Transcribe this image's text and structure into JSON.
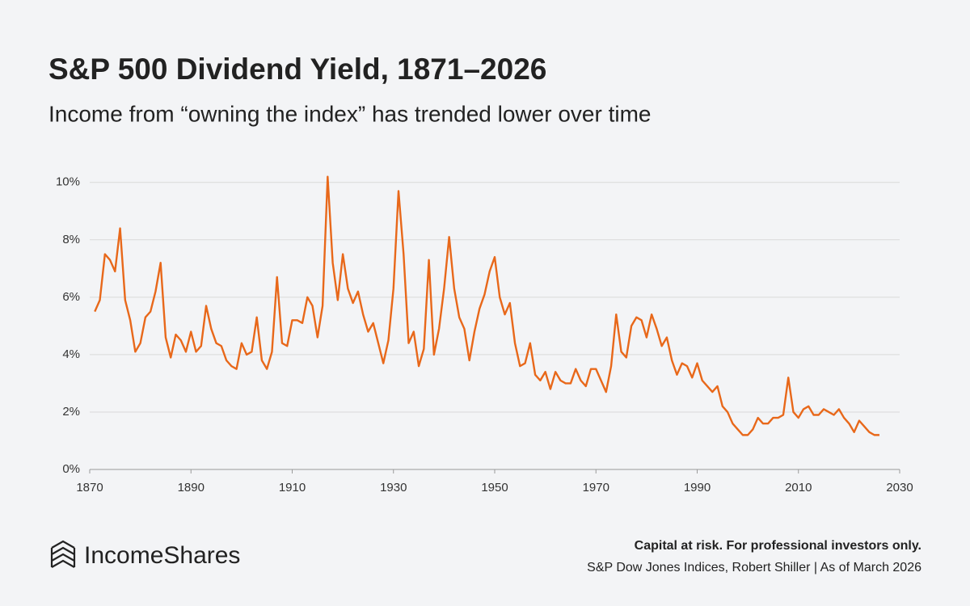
{
  "chart_data": {
    "type": "line",
    "title": "S&P 500 Dividend Yield, 1871–2026",
    "subtitle": "Income from “owning the index” has trended lower over time",
    "color": "#e8681a",
    "grid": true,
    "x": [
      1871,
      1872,
      1873,
      1874,
      1875,
      1876,
      1877,
      1878,
      1879,
      1880,
      1881,
      1882,
      1883,
      1884,
      1885,
      1886,
      1887,
      1888,
      1889,
      1890,
      1891,
      1892,
      1893,
      1894,
      1895,
      1896,
      1897,
      1898,
      1899,
      1900,
      1901,
      1902,
      1903,
      1904,
      1905,
      1906,
      1907,
      1908,
      1909,
      1910,
      1911,
      1912,
      1913,
      1914,
      1915,
      1916,
      1917,
      1918,
      1919,
      1920,
      1921,
      1922,
      1923,
      1924,
      1925,
      1926,
      1927,
      1928,
      1929,
      1930,
      1931,
      1932,
      1933,
      1934,
      1935,
      1936,
      1937,
      1938,
      1939,
      1940,
      1941,
      1942,
      1943,
      1944,
      1945,
      1946,
      1947,
      1948,
      1949,
      1950,
      1951,
      1952,
      1953,
      1954,
      1955,
      1956,
      1957,
      1958,
      1959,
      1960,
      1961,
      1962,
      1963,
      1964,
      1965,
      1966,
      1967,
      1968,
      1969,
      1970,
      1971,
      1972,
      1973,
      1974,
      1975,
      1976,
      1977,
      1978,
      1979,
      1980,
      1981,
      1982,
      1983,
      1984,
      1985,
      1986,
      1987,
      1988,
      1989,
      1990,
      1991,
      1992,
      1993,
      1994,
      1995,
      1996,
      1997,
      1998,
      1999,
      2000,
      2001,
      2002,
      2003,
      2004,
      2005,
      2006,
      2007,
      2008,
      2009,
      2010,
      2011,
      2012,
      2013,
      2014,
      2015,
      2016,
      2017,
      2018,
      2019,
      2020,
      2021,
      2022,
      2023,
      2024,
      2025,
      2026
    ],
    "values": [
      5.5,
      5.9,
      7.5,
      7.3,
      6.9,
      8.4,
      5.9,
      5.2,
      4.1,
      4.4,
      5.3,
      5.5,
      6.2,
      7.2,
      4.6,
      3.9,
      4.7,
      4.5,
      4.1,
      4.8,
      4.1,
      4.3,
      5.7,
      4.9,
      4.4,
      4.3,
      3.8,
      3.6,
      3.5,
      4.4,
      4.0,
      4.1,
      5.3,
      3.8,
      3.5,
      4.1,
      6.7,
      4.4,
      4.3,
      5.2,
      5.2,
      5.1,
      6.0,
      5.7,
      4.6,
      5.7,
      10.2,
      7.2,
      5.9,
      7.5,
      6.3,
      5.8,
      6.2,
      5.4,
      4.8,
      5.1,
      4.4,
      3.7,
      4.5,
      6.3,
      9.7,
      7.5,
      4.4,
      4.8,
      3.6,
      4.2,
      7.3,
      4.0,
      4.9,
      6.3,
      8.1,
      6.3,
      5.3,
      4.9,
      3.8,
      4.8,
      5.6,
      6.1,
      6.9,
      7.4,
      6.0,
      5.4,
      5.8,
      4.4,
      3.6,
      3.7,
      4.4,
      3.3,
      3.1,
      3.4,
      2.8,
      3.4,
      3.1,
      3.0,
      3.0,
      3.5,
      3.1,
      2.9,
      3.5,
      3.5,
      3.1,
      2.7,
      3.6,
      5.4,
      4.1,
      3.9,
      5.0,
      5.3,
      5.2,
      4.6,
      5.4,
      4.9,
      4.3,
      4.6,
      3.8,
      3.3,
      3.7,
      3.6,
      3.2,
      3.7,
      3.1,
      2.9,
      2.7,
      2.9,
      2.2,
      2.0,
      1.6,
      1.4,
      1.2,
      1.2,
      1.4,
      1.8,
      1.6,
      1.6,
      1.8,
      1.8,
      1.9,
      3.2,
      2.0,
      1.8,
      2.1,
      2.2,
      1.9,
      1.9,
      2.1,
      2.0,
      1.9,
      2.1,
      1.8,
      1.6,
      1.3,
      1.7,
      1.5,
      1.3,
      1.2,
      1.2
    ],
    "xlim": [
      1870,
      2030
    ],
    "xticks": [
      1870,
      1890,
      1910,
      1930,
      1950,
      1970,
      1990,
      2010,
      2030
    ],
    "ylim": [
      0,
      10.5
    ],
    "yticks": [
      {
        "value": 0,
        "label": "0%"
      },
      {
        "value": 2,
        "label": "2%"
      },
      {
        "value": 4,
        "label": "4%"
      },
      {
        "value": 6,
        "label": "6%"
      },
      {
        "value": 8,
        "label": "8%"
      },
      {
        "value": 10,
        "label": "10%"
      }
    ]
  },
  "footer": {
    "brand": "IncomeShares",
    "note": "Capital at risk. For professional investors only.",
    "source": "S&P Dow Jones Indices, Robert Shiller | As of March 2026"
  }
}
